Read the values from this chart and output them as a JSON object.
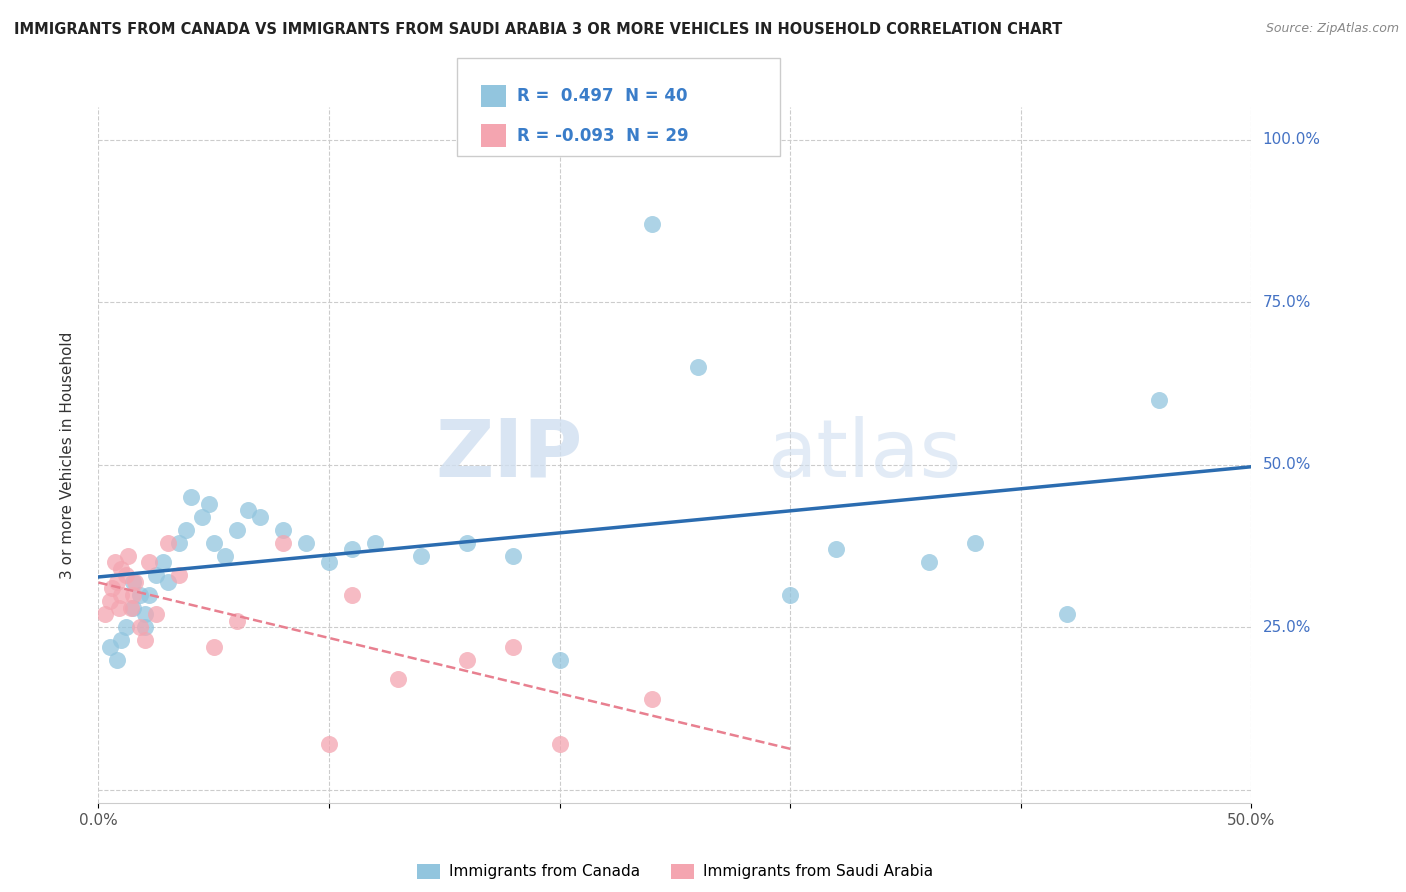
{
  "title": "IMMIGRANTS FROM CANADA VS IMMIGRANTS FROM SAUDI ARABIA 3 OR MORE VEHICLES IN HOUSEHOLD CORRELATION CHART",
  "source": "Source: ZipAtlas.com",
  "ylabel": "3 or more Vehicles in Household",
  "xlim": [
    0.0,
    0.5
  ],
  "ylim": [
    -0.02,
    1.05
  ],
  "xticks": [
    0.0,
    0.1,
    0.2,
    0.3,
    0.4,
    0.5
  ],
  "xticklabels": [
    "0.0%",
    "",
    "",
    "",
    "",
    "50.0%"
  ],
  "yticks": [
    0.0,
    0.25,
    0.5,
    0.75,
    1.0
  ],
  "yticklabels": [
    "",
    "25.0%",
    "50.0%",
    "75.0%",
    "100.0%"
  ],
  "R_canada": 0.497,
  "N_canada": 40,
  "R_saudi": -0.093,
  "N_saudi": 29,
  "canada_color": "#92C5DE",
  "saudi_color": "#F4A5B0",
  "canada_line_color": "#2B6CB0",
  "saudi_line_color": "#E88090",
  "watermark_zip": "ZIP",
  "watermark_atlas": "atlas",
  "legend_entries": [
    "Immigrants from Canada",
    "Immigrants from Saudi Arabia"
  ],
  "canada_x": [
    0.005,
    0.008,
    0.01,
    0.012,
    0.015,
    0.015,
    0.018,
    0.02,
    0.02,
    0.022,
    0.025,
    0.028,
    0.03,
    0.035,
    0.038,
    0.04,
    0.045,
    0.048,
    0.05,
    0.055,
    0.06,
    0.065,
    0.07,
    0.08,
    0.09,
    0.1,
    0.11,
    0.12,
    0.14,
    0.16,
    0.18,
    0.2,
    0.24,
    0.26,
    0.3,
    0.32,
    0.36,
    0.38,
    0.42,
    0.46
  ],
  "canada_y": [
    0.22,
    0.2,
    0.23,
    0.25,
    0.28,
    0.32,
    0.3,
    0.25,
    0.27,
    0.3,
    0.33,
    0.35,
    0.32,
    0.38,
    0.4,
    0.45,
    0.42,
    0.44,
    0.38,
    0.36,
    0.4,
    0.43,
    0.42,
    0.4,
    0.38,
    0.35,
    0.37,
    0.38,
    0.36,
    0.38,
    0.36,
    0.2,
    0.87,
    0.65,
    0.3,
    0.37,
    0.35,
    0.38,
    0.27,
    0.6
  ],
  "saudi_x": [
    0.003,
    0.005,
    0.006,
    0.007,
    0.008,
    0.009,
    0.01,
    0.01,
    0.012,
    0.013,
    0.014,
    0.015,
    0.016,
    0.018,
    0.02,
    0.022,
    0.025,
    0.03,
    0.035,
    0.05,
    0.06,
    0.08,
    0.1,
    0.11,
    0.13,
    0.16,
    0.18,
    0.2,
    0.24
  ],
  "saudi_y": [
    0.27,
    0.29,
    0.31,
    0.35,
    0.32,
    0.28,
    0.3,
    0.34,
    0.33,
    0.36,
    0.28,
    0.3,
    0.32,
    0.25,
    0.23,
    0.35,
    0.27,
    0.38,
    0.33,
    0.22,
    0.26,
    0.38,
    0.07,
    0.3,
    0.17,
    0.2,
    0.22,
    0.07,
    0.14
  ]
}
